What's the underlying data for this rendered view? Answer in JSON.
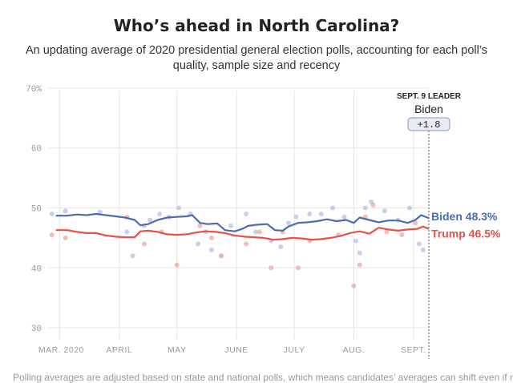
{
  "title": "Who’s ahead in North Carolina?",
  "subtitle": "An updating average of 2020 presidential general election polls, accounting for each poll’s quality, sample size and recency",
  "footnote": "Polling averages are adjusted based on state and national polls, which means candidates’ averages can shift even if no new",
  "leader": {
    "header": "SEPT. 9 LEADER",
    "name": "Biden",
    "margin": "+1.8"
  },
  "colors": {
    "biden": "#4c6cb0",
    "trump": "#e8504a",
    "biden_dot": "#b7bfe6",
    "trump_dot": "#f0a6a3",
    "grid": "#e5e5e5"
  },
  "chart_data": {
    "type": "line",
    "ylim": [
      28,
      72
    ],
    "y_ticks": [
      {
        "value": 70,
        "label": "70%"
      },
      {
        "value": 60,
        "label": "60"
      },
      {
        "value": 50,
        "label": "50"
      },
      {
        "value": 40,
        "label": "40"
      },
      {
        "value": 30,
        "label": "30"
      }
    ],
    "x_domain": [
      "2020-02-24",
      "2020-09-09"
    ],
    "x_ticks": [
      {
        "date": "2020-03-01",
        "label": "MAR. 2020"
      },
      {
        "date": "2020-04-01",
        "label": "APRIL"
      },
      {
        "date": "2020-05-01",
        "label": "MAY"
      },
      {
        "date": "2020-06-01",
        "label": "JUNE"
      },
      {
        "date": "2020-07-01",
        "label": "JULY"
      },
      {
        "date": "2020-08-01",
        "label": "AUG."
      },
      {
        "date": "2020-09-01",
        "label": "SEPT."
      }
    ],
    "series": [
      {
        "name": "Biden",
        "end_label": "Biden 48.3%",
        "points": [
          [
            "2020-02-28",
            48.7
          ],
          [
            "2020-03-05",
            48.7
          ],
          [
            "2020-03-10",
            48.9
          ],
          [
            "2020-03-15",
            48.8
          ],
          [
            "2020-03-20",
            49.0
          ],
          [
            "2020-03-25",
            48.8
          ],
          [
            "2020-03-30",
            48.6
          ],
          [
            "2020-04-04",
            48.4
          ],
          [
            "2020-04-09",
            48.0
          ],
          [
            "2020-04-12",
            47.1
          ],
          [
            "2020-04-16",
            47.3
          ],
          [
            "2020-04-21",
            48.0
          ],
          [
            "2020-04-26",
            48.4
          ],
          [
            "2020-05-01",
            48.5
          ],
          [
            "2020-05-06",
            48.6
          ],
          [
            "2020-05-09",
            48.8
          ],
          [
            "2020-05-13",
            47.5
          ],
          [
            "2020-05-17",
            47.3
          ],
          [
            "2020-05-22",
            47.4
          ],
          [
            "2020-05-26",
            46.3
          ],
          [
            "2020-05-31",
            46.1
          ],
          [
            "2020-06-04",
            46.5
          ],
          [
            "2020-06-07",
            47.0
          ],
          [
            "2020-06-12",
            47.2
          ],
          [
            "2020-06-17",
            47.3
          ],
          [
            "2020-06-21",
            46.3
          ],
          [
            "2020-06-25",
            46.2
          ],
          [
            "2020-06-28",
            46.9
          ],
          [
            "2020-07-03",
            47.5
          ],
          [
            "2020-07-08",
            47.6
          ],
          [
            "2020-07-13",
            47.8
          ],
          [
            "2020-07-18",
            48.1
          ],
          [
            "2020-07-23",
            47.8
          ],
          [
            "2020-07-28",
            48.0
          ],
          [
            "2020-08-01",
            47.5
          ],
          [
            "2020-08-04",
            48.4
          ],
          [
            "2020-08-09",
            48.0
          ],
          [
            "2020-08-14",
            47.6
          ],
          [
            "2020-08-19",
            47.9
          ],
          [
            "2020-08-24",
            47.9
          ],
          [
            "2020-08-29",
            47.5
          ],
          [
            "2020-09-02",
            48.0
          ],
          [
            "2020-09-05",
            48.8
          ],
          [
            "2020-09-09",
            48.3
          ]
        ]
      },
      {
        "name": "Trump",
        "end_label": "Trump 46.5%",
        "points": [
          [
            "2020-02-28",
            46.3
          ],
          [
            "2020-03-05",
            46.3
          ],
          [
            "2020-03-10",
            46.0
          ],
          [
            "2020-03-15",
            45.8
          ],
          [
            "2020-03-20",
            45.8
          ],
          [
            "2020-03-25",
            45.4
          ],
          [
            "2020-03-30",
            45.2
          ],
          [
            "2020-04-04",
            45.1
          ],
          [
            "2020-04-09",
            45.1
          ],
          [
            "2020-04-12",
            46.1
          ],
          [
            "2020-04-16",
            46.2
          ],
          [
            "2020-04-21",
            46.0
          ],
          [
            "2020-04-26",
            45.6
          ],
          [
            "2020-05-01",
            45.5
          ],
          [
            "2020-05-06",
            45.6
          ],
          [
            "2020-05-11",
            45.9
          ],
          [
            "2020-05-16",
            46.1
          ],
          [
            "2020-05-21",
            46.0
          ],
          [
            "2020-05-26",
            45.8
          ],
          [
            "2020-05-31",
            45.4
          ],
          [
            "2020-06-05",
            45.2
          ],
          [
            "2020-06-10",
            45.1
          ],
          [
            "2020-06-15",
            45.0
          ],
          [
            "2020-06-20",
            44.7
          ],
          [
            "2020-06-25",
            44.8
          ],
          [
            "2020-06-30",
            45.0
          ],
          [
            "2020-07-05",
            44.9
          ],
          [
            "2020-07-10",
            44.7
          ],
          [
            "2020-07-15",
            44.8
          ],
          [
            "2020-07-20",
            45.0
          ],
          [
            "2020-07-25",
            45.3
          ],
          [
            "2020-07-30",
            45.8
          ],
          [
            "2020-08-04",
            46.1
          ],
          [
            "2020-08-09",
            45.7
          ],
          [
            "2020-08-14",
            46.7
          ],
          [
            "2020-08-19",
            46.4
          ],
          [
            "2020-08-24",
            46.2
          ],
          [
            "2020-08-29",
            46.4
          ],
          [
            "2020-09-03",
            46.5
          ],
          [
            "2020-09-06",
            46.9
          ],
          [
            "2020-09-09",
            46.5
          ]
        ]
      }
    ],
    "polls_biden": [
      [
        "2020-02-26",
        49.0
      ],
      [
        "2020-03-04",
        49.5
      ],
      [
        "2020-03-22",
        49.3
      ],
      [
        "2020-04-05",
        46.0
      ],
      [
        "2020-04-08",
        42.0
      ],
      [
        "2020-04-14",
        47.0
      ],
      [
        "2020-04-17",
        48.0
      ],
      [
        "2020-04-22",
        49.0
      ],
      [
        "2020-04-27",
        48.5
      ],
      [
        "2020-05-02",
        50.0
      ],
      [
        "2020-05-08",
        49.0
      ],
      [
        "2020-05-12",
        44.0
      ],
      [
        "2020-05-16",
        46.0
      ],
      [
        "2020-05-19",
        43.0
      ],
      [
        "2020-05-24",
        42.0
      ],
      [
        "2020-05-29",
        47.0
      ],
      [
        "2020-06-06",
        49.0
      ],
      [
        "2020-06-11",
        46.0
      ],
      [
        "2020-06-19",
        44.5
      ],
      [
        "2020-06-24",
        43.5
      ],
      [
        "2020-06-28",
        47.5
      ],
      [
        "2020-07-02",
        48.5
      ],
      [
        "2020-07-09",
        49.0
      ],
      [
        "2020-07-15",
        49.0
      ],
      [
        "2020-07-21",
        50.0
      ],
      [
        "2020-07-27",
        48.5
      ],
      [
        "2020-08-02",
        44.5
      ],
      [
        "2020-08-04",
        42.5
      ],
      [
        "2020-08-07",
        50.0
      ],
      [
        "2020-08-10",
        51.0
      ],
      [
        "2020-08-17",
        49.5
      ],
      [
        "2020-08-24",
        48.0
      ],
      [
        "2020-08-30",
        50.0
      ],
      [
        "2020-09-04",
        44.0
      ],
      [
        "2020-09-06",
        43.0
      ]
    ],
    "polls_trump": [
      [
        "2020-02-26",
        45.5
      ],
      [
        "2020-03-04",
        45.0
      ],
      [
        "2020-04-05",
        48.5
      ],
      [
        "2020-04-14",
        44.0
      ],
      [
        "2020-04-23",
        46.0
      ],
      [
        "2020-05-01",
        40.5
      ],
      [
        "2020-05-13",
        47.0
      ],
      [
        "2020-05-19",
        45.0
      ],
      [
        "2020-05-24",
        42.0
      ],
      [
        "2020-06-06",
        44.0
      ],
      [
        "2020-06-13",
        46.0
      ],
      [
        "2020-06-19",
        40.0
      ],
      [
        "2020-06-25",
        46.0
      ],
      [
        "2020-07-03",
        40.0
      ],
      [
        "2020-07-09",
        44.5
      ],
      [
        "2020-07-24",
        45.5
      ],
      [
        "2020-08-01",
        37.0
      ],
      [
        "2020-08-04",
        40.5
      ],
      [
        "2020-08-07",
        48.5
      ],
      [
        "2020-08-11",
        50.5
      ],
      [
        "2020-08-18",
        46.0
      ],
      [
        "2020-08-26",
        45.5
      ],
      [
        "2020-09-02",
        47.5
      ]
    ]
  }
}
